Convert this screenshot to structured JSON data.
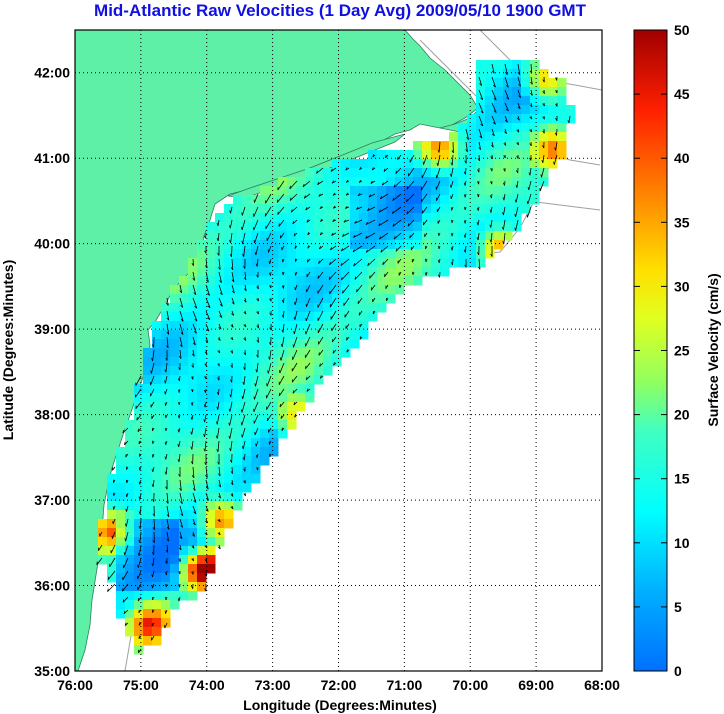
{
  "title": "Mid-Atlantic Raw Velocities (1 Day Avg) 2009/05/10 1900 GMT",
  "axes": {
    "xlabel": "Longitude (Degrees:Minutes)",
    "ylabel": "Latitude (Degrees:Minutes)",
    "xticks": [
      "76:00",
      "75:00",
      "74:00",
      "73:00",
      "72:00",
      "71:00",
      "70:00",
      "69:00",
      "68:00"
    ],
    "yticks": [
      "42:00",
      "41:00",
      "40:00",
      "39:00",
      "38:00",
      "37:00",
      "36:00",
      "35:00"
    ],
    "xlim_deg_west": [
      76,
      68
    ],
    "ylim_deg_north": [
      35,
      42.5
    ],
    "grid": "dotted"
  },
  "colorbar": {
    "label": "Surface Velocity (cm/s)",
    "ticks": [
      "50",
      "45",
      "40",
      "35",
      "30",
      "25",
      "20",
      "15",
      "10",
      "5",
      "0"
    ],
    "range": [
      0,
      50
    ],
    "colormap": "jet"
  },
  "colors": {
    "land": "#5ff0a8",
    "title": "#1010e0",
    "bathymetry": "#a0a0a0",
    "vector": "#000000"
  }
}
